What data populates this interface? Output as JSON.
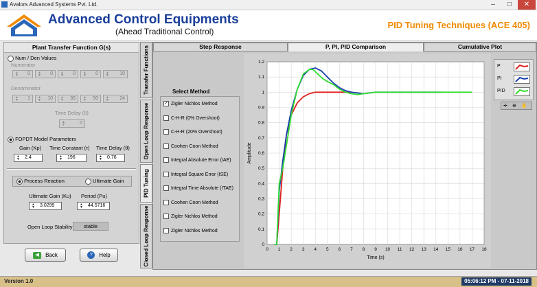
{
  "window": {
    "title": "Avalors Advanced Systems Pvt. Ltd.",
    "min": "–",
    "max": "□",
    "close": "✕"
  },
  "header": {
    "company": "Advanced Control Equipments",
    "tagline": "(Ahead Traditional Control)",
    "product": "PID Tuning Techniques (ACE 405)"
  },
  "left": {
    "title": "Plant Transfer Function G(s)",
    "num_den_label": "Num / Den Values",
    "numerator_label": "Numerator",
    "numerator": [
      "0",
      "0",
      "0",
      "0",
      "10"
    ],
    "denominator_label": "Denominator",
    "denominator": [
      "1",
      "10",
      "35",
      "50",
      "24"
    ],
    "time_delay_label": "Time Delay (θ)",
    "time_delay": "0",
    "fopdt_label": "FOPDT Model Parameters",
    "gain_label": "Gain (Kp)",
    "gain": "2.4",
    "tc_label": "Time Constant (τ)",
    "tc": "196",
    "td_label": "Time Delay (θ)",
    "td": "0.76",
    "process_reaction": "Process Reaction",
    "ultimate_gain": "Ultimate Gain",
    "ku_label": "Ultimate Gain (Ku)",
    "ku": "3.0299",
    "pu_label": "Period (Pu)",
    "pu": "44.5716",
    "stability_label": "Open Loop Stability",
    "stability": "stable",
    "back": "Back",
    "help": "Help"
  },
  "vtabs": [
    "Transfer Functions",
    "Open Loop Response",
    "PID Tuning",
    "Closed Loop Response"
  ],
  "tabs": [
    "Step Response",
    "P, PI, PID Comparison",
    "Cumulative Plot"
  ],
  "methods_title": "Select Method",
  "methods": [
    {
      "label": "Zigler Nichlos Method",
      "checked": true
    },
    {
      "label": "C-H-R (0% Overshoot)",
      "checked": false
    },
    {
      "label": "C-H-R (20% Overshoot)",
      "checked": false
    },
    {
      "label": "Coohen Coon Method",
      "checked": false
    },
    {
      "label": "Integral Absolute Error (IAE)",
      "checked": false
    },
    {
      "label": "Integral Square Error (ISE)",
      "checked": false
    },
    {
      "label": "Integral Time Absolute (ITAE)",
      "checked": false
    },
    {
      "label": "Coohen Coon Method",
      "checked": false
    },
    {
      "label": "Zigler Nichlos Method",
      "checked": false
    },
    {
      "label": "Zigler Nichlos Method",
      "checked": false
    }
  ],
  "legend": [
    "P",
    "PI",
    "PID"
  ],
  "footer": {
    "version": "Version 1.0",
    "clock": "05:06:12 PM - 07-11-2018"
  },
  "colors": {
    "p": "#e02020",
    "pi": "#1a3fb0",
    "pid": "#33dd33",
    "brand": "#1a3e9a",
    "product": "#f08a00"
  },
  "chart_data": {
    "type": "line",
    "xlabel": "Time (s)",
    "ylabel": "Amplitude",
    "xlim": [
      0,
      18
    ],
    "ylim": [
      0,
      1.2
    ],
    "xticks": [
      "0",
      "1",
      "2",
      "3",
      "4",
      "5",
      "6",
      "7",
      "8",
      "9",
      "10",
      "11",
      "12",
      "13",
      "14",
      "15",
      "16",
      "17",
      "18"
    ],
    "yticks": [
      "0",
      "0.1",
      "0.2",
      "0.3",
      "0.4",
      "0.5",
      "0.6",
      "0.7",
      "0.8",
      "0.9",
      "1",
      "1.1",
      "1.2"
    ],
    "grid": true,
    "series": [
      {
        "name": "P",
        "color": "#e02020",
        "x": [
          0.6,
          0.8,
          1.0,
          1.3,
          1.6,
          2.0,
          2.5,
          3.0,
          3.5,
          4.0,
          5.0,
          6.0,
          7.0
        ],
        "y": [
          0,
          0,
          0.2,
          0.5,
          0.72,
          0.85,
          0.93,
          0.97,
          0.99,
          1.0,
          1.0,
          1.0,
          1.0
        ]
      },
      {
        "name": "PI",
        "color": "#1a3fb0",
        "x": [
          0.6,
          0.8,
          1.0,
          1.3,
          1.6,
          2.0,
          2.5,
          3.0,
          3.5,
          4.0,
          4.5,
          5.0,
          5.5,
          6.0,
          6.5,
          7.0,
          8.0,
          9.0,
          10.0,
          11.0,
          12.0,
          13.0,
          14.4
        ],
        "y": [
          0,
          0,
          0.35,
          0.55,
          0.72,
          0.88,
          1.02,
          1.11,
          1.15,
          1.16,
          1.14,
          1.1,
          1.06,
          1.03,
          1.01,
          1.0,
          0.99,
          1.0,
          1.0,
          1.0,
          1.0,
          1.0,
          1.0
        ]
      },
      {
        "name": "PID",
        "color": "#33dd33",
        "x": [
          0.6,
          0.8,
          1.0,
          1.3,
          1.6,
          2.0,
          2.5,
          3.0,
          3.5,
          3.8,
          4.2,
          4.6,
          5.0,
          5.5,
          6.0,
          6.5,
          7.0,
          7.5,
          8.0,
          9.0,
          10.0,
          12.0,
          14.0,
          17.0
        ],
        "y": [
          0,
          0,
          0.4,
          0.5,
          0.65,
          0.85,
          1.02,
          1.12,
          1.15,
          1.15,
          1.12,
          1.09,
          1.07,
          1.05,
          1.02,
          1.0,
          0.99,
          0.985,
          0.99,
          1.0,
          1.0,
          1.0,
          1.0,
          1.0
        ]
      }
    ]
  }
}
